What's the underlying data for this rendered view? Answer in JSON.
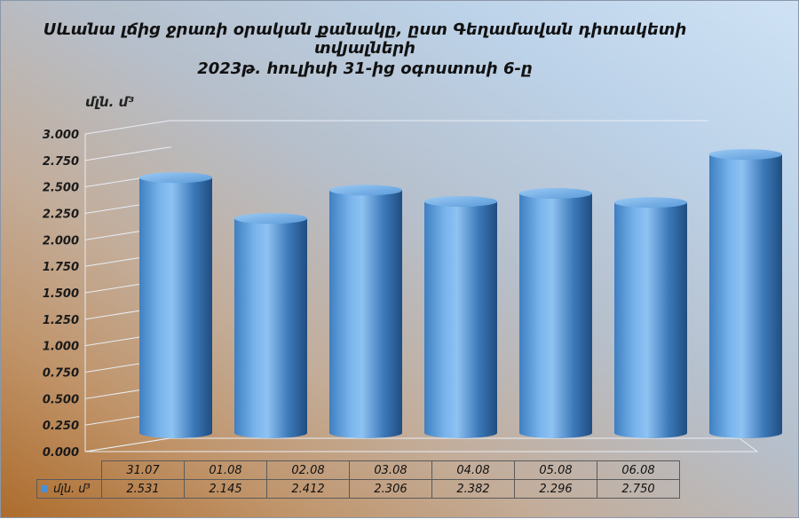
{
  "title_line1": "Սևանա լճից ջրառի օրական քանակը, ըստ Գեղամավան դիտակետի տվյալների",
  "title_line2": "2023թ. հուլիսի 31-ից օգոստոսի 6-ը",
  "chart_data": {
    "type": "bar",
    "title": "Սևանա լճից ջրառի օրական քանակը, ըստ Գեղամավան դիտակետի տվյալների",
    "subtitle": "2023թ. հուլիսի 31-ից օգոստոսի 6-ը",
    "ylabel": "մլն. մ³",
    "xlabel": "",
    "categories": [
      "31.07",
      "01.08",
      "02.08",
      "03.08",
      "04.08",
      "05.08",
      "06.08"
    ],
    "series": [
      {
        "name": "մլն. մ³",
        "values": [
          2.531,
          2.145,
          2.412,
          2.306,
          2.382,
          2.296,
          2.75
        ]
      }
    ],
    "value_labels": [
      "2.531",
      "2.145",
      "2.412",
      "2.306",
      "2.382",
      "2.296",
      "2.750"
    ],
    "ylim": [
      0,
      3.0
    ],
    "yticks": [
      "0.000",
      "0.250",
      "0.500",
      "0.750",
      "1.000",
      "1.250",
      "1.500",
      "1.750",
      "2.000",
      "2.250",
      "2.500",
      "2.750",
      "3.000"
    ],
    "grid": true,
    "legend": "data-table",
    "style": "3d-cylinder",
    "colors": {
      "bar_light": "#8ec2f2",
      "bar_mid": "#4a8fd4",
      "bar_dark": "#1f4d80",
      "legend_swatch": "#4a8fd4"
    }
  }
}
